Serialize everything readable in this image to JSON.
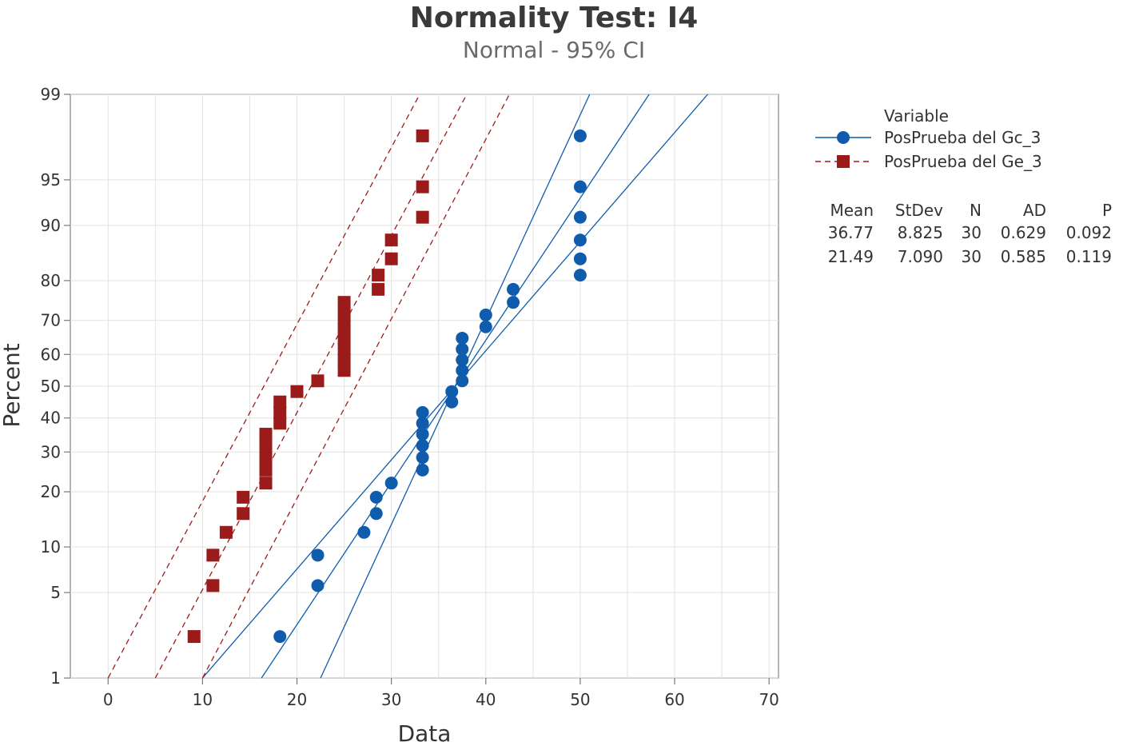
{
  "chart_data": {
    "type": "scatter",
    "plot_kind": "normal probability plot",
    "title": "Normality Test: I4",
    "subtitle": "Normal - 95% CI",
    "xlabel": "Data",
    "ylabel": "Percent",
    "xlim": [
      -4,
      71
    ],
    "x_ticks": [
      0,
      10,
      20,
      30,
      40,
      50,
      60,
      70
    ],
    "y_ticks": [
      1,
      5,
      10,
      20,
      30,
      40,
      50,
      60,
      70,
      80,
      90,
      95,
      99
    ],
    "y_scale": "normal-probability",
    "grid": true,
    "legend": {
      "title": "Variable",
      "position": "right",
      "entries": [
        "PosPrueba del Gc_3",
        "PosPrueba del Ge_3"
      ]
    },
    "stats_table": {
      "headers": [
        "Mean",
        "StDev",
        "N",
        "AD",
        "P"
      ],
      "rows": [
        [
          "36.77",
          "8.825",
          "30",
          "0.629",
          "0.092"
        ],
        [
          "21.49",
          "7.090",
          "30",
          "0.585",
          "0.119"
        ]
      ]
    },
    "series": [
      {
        "name": "PosPrueba del Gc_3",
        "color": "#0f5cad",
        "marker": "circle",
        "line_style": "solid",
        "mean": 36.77,
        "stdev": 8.825,
        "n": 30,
        "ci_lower_at_1pct": 10.0,
        "ci_lower_at_99pct": 63.5,
        "ci_upper_at_1pct": 22.5,
        "ci_upper_at_99pct": 51.0,
        "points": [
          {
            "x": 18.2,
            "p": 2.3
          },
          {
            "x": 22.2,
            "p": 5.6
          },
          {
            "x": 22.2,
            "p": 8.9
          },
          {
            "x": 27.1,
            "p": 12.2
          },
          {
            "x": 28.4,
            "p": 15.5
          },
          {
            "x": 28.4,
            "p": 18.8
          },
          {
            "x": 30.0,
            "p": 22.0
          },
          {
            "x": 33.3,
            "p": 25.2
          },
          {
            "x": 33.3,
            "p": 28.5
          },
          {
            "x": 33.3,
            "p": 31.8
          },
          {
            "x": 33.3,
            "p": 35.1
          },
          {
            "x": 33.3,
            "p": 38.4
          },
          {
            "x": 33.3,
            "p": 41.7
          },
          {
            "x": 36.4,
            "p": 45.0
          },
          {
            "x": 36.4,
            "p": 48.3
          },
          {
            "x": 37.5,
            "p": 51.7
          },
          {
            "x": 37.5,
            "p": 55.0
          },
          {
            "x": 37.5,
            "p": 58.3
          },
          {
            "x": 37.5,
            "p": 61.6
          },
          {
            "x": 37.5,
            "p": 64.9
          },
          {
            "x": 40.0,
            "p": 68.2
          },
          {
            "x": 40.0,
            "p": 71.5
          },
          {
            "x": 42.9,
            "p": 74.8
          },
          {
            "x": 42.9,
            "p": 78.0
          },
          {
            "x": 50.0,
            "p": 81.2
          },
          {
            "x": 50.0,
            "p": 84.5
          },
          {
            "x": 50.0,
            "p": 87.8
          },
          {
            "x": 50.0,
            "p": 91.1
          },
          {
            "x": 50.0,
            "p": 94.4
          },
          {
            "x": 50.0,
            "p": 97.7
          }
        ]
      },
      {
        "name": "PosPrueba del Ge_3",
        "color": "#9b1b1b",
        "marker": "square",
        "line_style": "dashed",
        "mean": 21.49,
        "stdev": 7.09,
        "n": 30,
        "ci_lower_at_1pct": 0.0,
        "ci_lower_at_99pct": 33.0,
        "ci_upper_at_1pct": 10.0,
        "ci_upper_at_99pct": 42.5,
        "points": [
          {
            "x": 9.1,
            "p": 2.3
          },
          {
            "x": 11.1,
            "p": 5.6
          },
          {
            "x": 11.1,
            "p": 8.9
          },
          {
            "x": 12.5,
            "p": 12.2
          },
          {
            "x": 14.3,
            "p": 15.5
          },
          {
            "x": 14.3,
            "p": 18.8
          },
          {
            "x": 16.7,
            "p": 22.0
          },
          {
            "x": 16.7,
            "p": 25.2
          },
          {
            "x": 16.7,
            "p": 28.5
          },
          {
            "x": 16.7,
            "p": 31.8
          },
          {
            "x": 16.7,
            "p": 35.1
          },
          {
            "x": 18.2,
            "p": 38.4
          },
          {
            "x": 18.2,
            "p": 41.7
          },
          {
            "x": 18.2,
            "p": 45.0
          },
          {
            "x": 20.0,
            "p": 48.3
          },
          {
            "x": 22.2,
            "p": 51.7
          },
          {
            "x": 25.0,
            "p": 55.0
          },
          {
            "x": 25.0,
            "p": 58.3
          },
          {
            "x": 25.0,
            "p": 61.6
          },
          {
            "x": 25.0,
            "p": 64.9
          },
          {
            "x": 25.0,
            "p": 68.2
          },
          {
            "x": 25.0,
            "p": 71.5
          },
          {
            "x": 25.0,
            "p": 74.8
          },
          {
            "x": 28.6,
            "p": 78.0
          },
          {
            "x": 28.6,
            "p": 81.2
          },
          {
            "x": 30.0,
            "p": 84.5
          },
          {
            "x": 30.0,
            "p": 87.8
          },
          {
            "x": 33.3,
            "p": 91.1
          },
          {
            "x": 33.3,
            "p": 94.4
          },
          {
            "x": 33.3,
            "p": 97.7
          }
        ]
      }
    ]
  }
}
